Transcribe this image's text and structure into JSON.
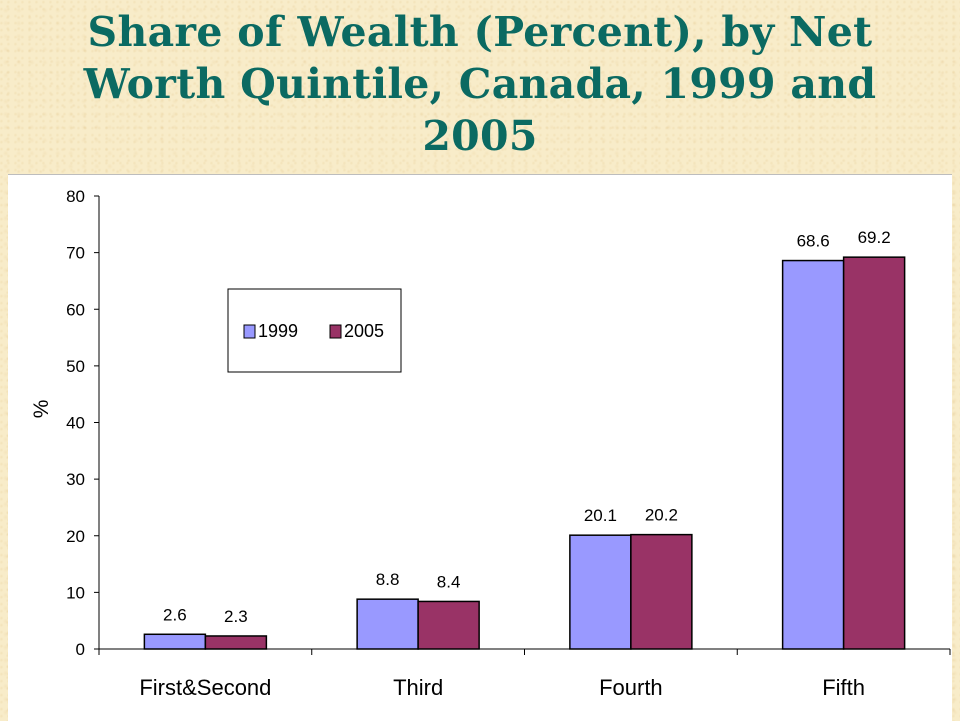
{
  "title": "Share of Wealth (Percent), by Net Worth Quintile, Canada, 1999 and 2005",
  "chart_data": {
    "type": "bar",
    "title": "Share of Wealth (Percent), by Net Worth Quintile, Canada, 1999 and 2005",
    "categories": [
      "First&Second",
      "Third",
      "Fourth",
      "Fifth"
    ],
    "series": [
      {
        "name": "1999",
        "values": [
          2.6,
          8.8,
          20.1,
          68.6
        ],
        "color": "#9999ff"
      },
      {
        "name": "2005",
        "values": [
          2.3,
          8.4,
          20.2,
          69.2
        ],
        "color": "#993366"
      }
    ],
    "data_labels": [
      [
        "2.6",
        "8.8",
        "20.1",
        "68.6"
      ],
      [
        "2.3",
        "8.4",
        "20.2",
        "69.2"
      ]
    ],
    "xlabel": "",
    "ylabel": "%",
    "ylim": [
      0,
      80
    ],
    "yticks": [
      0,
      10,
      20,
      30,
      40,
      50,
      60,
      70,
      80
    ],
    "grid": false,
    "legend": "upper-left inset"
  }
}
